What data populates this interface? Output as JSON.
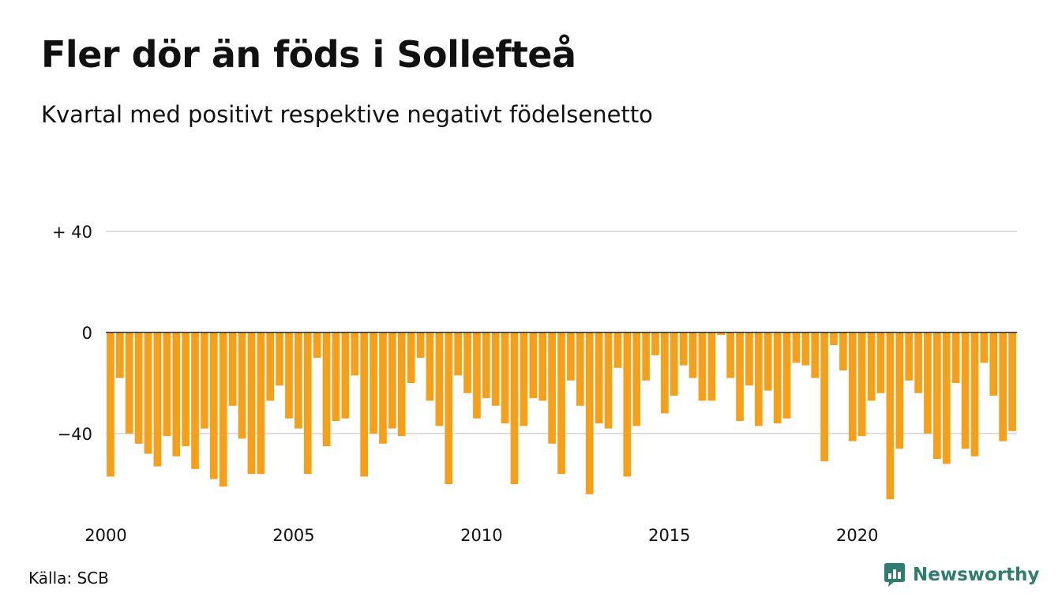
{
  "title": "Fler dör än föds i Sollefteå",
  "subtitle": "Kvartal med positivt respektive negativt födelsenetto",
  "source": "Källa: SCB",
  "brand": "Newsworthy",
  "colors": {
    "bar": "#f6a01a",
    "grid": "#dddddd",
    "zero": "#222222",
    "brand": "#2e7d6e"
  },
  "chart_data": {
    "type": "bar",
    "title": "Fler dör än föds i Sollefteå",
    "subtitle": "Kvartal med positivt respektive negativt födelsenetto",
    "ylim": [
      -67,
      40
    ],
    "y_ticks": [
      {
        "value": 40,
        "label": "+ 40"
      },
      {
        "value": 0,
        "label": "0"
      },
      {
        "value": -40,
        "label": "−40"
      }
    ],
    "x_ticks": [
      {
        "index": 0,
        "label": "2000"
      },
      {
        "index": 20,
        "label": "2005"
      },
      {
        "index": 40,
        "label": "2010"
      },
      {
        "index": 60,
        "label": "2015"
      },
      {
        "index": 80,
        "label": "2020"
      }
    ],
    "grid": true,
    "series": [
      {
        "values": [
          -57,
          -18,
          -40,
          -44,
          -48,
          -53,
          -41,
          -49,
          -45,
          -54,
          -38,
          -58,
          -61,
          -29,
          -42,
          -56,
          -56,
          -27,
          -21,
          -34,
          -38,
          -56,
          -10,
          -45,
          -35,
          -34,
          -17,
          -57,
          -40,
          -44,
          -38,
          -41,
          -20,
          -10,
          -27,
          -37,
          -60,
          -17,
          -24,
          -34,
          -26,
          -29,
          -36,
          -60,
          -37,
          -26,
          -27,
          -44,
          -56,
          -19,
          -29,
          -64,
          -36,
          -38,
          -14,
          -57,
          -37,
          -19,
          -9,
          -32,
          -25,
          -13,
          -18,
          -27,
          -27,
          -1,
          -18,
          -35,
          -21,
          -37,
          -23,
          -36,
          -34,
          -12,
          -13,
          -18,
          -51,
          -5,
          -15,
          -43,
          -41,
          -27,
          -24,
          -66,
          -46,
          -19,
          -24,
          -40,
          -50,
          -52,
          -20,
          -46,
          -49,
          -12,
          -25,
          -43,
          -39
        ]
      }
    ]
  }
}
